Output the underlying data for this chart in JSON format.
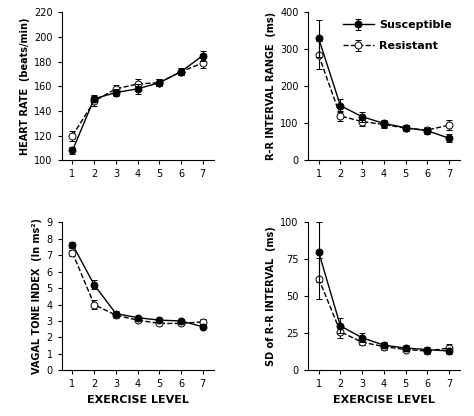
{
  "x": [
    1,
    2,
    3,
    4,
    5,
    6,
    7
  ],
  "hr_susceptible": [
    108,
    150,
    155,
    158,
    163,
    172,
    185
  ],
  "hr_susceptible_err": [
    3,
    3,
    3,
    4,
    3,
    3,
    4
  ],
  "hr_resistant": [
    120,
    148,
    158,
    162,
    163,
    172,
    179
  ],
  "hr_resistant_err": [
    4,
    4,
    3,
    4,
    3,
    3,
    4
  ],
  "rr_susceptible": [
    330,
    148,
    118,
    100,
    88,
    80,
    60
  ],
  "rr_susceptible_err": [
    50,
    18,
    14,
    10,
    8,
    8,
    10
  ],
  "rr_resistant": [
    285,
    120,
    105,
    97,
    87,
    82,
    95
  ],
  "rr_resistant_err": [
    38,
    14,
    12,
    10,
    8,
    8,
    14
  ],
  "vti_susceptible": [
    7.65,
    5.2,
    3.45,
    3.2,
    3.05,
    3.0,
    2.65
  ],
  "vti_susceptible_err": [
    0.18,
    0.28,
    0.15,
    0.12,
    0.1,
    0.1,
    0.1
  ],
  "vti_resistant": [
    7.15,
    4.0,
    3.35,
    3.05,
    2.85,
    2.85,
    2.95
  ],
  "vti_resistant_err": [
    0.18,
    0.28,
    0.15,
    0.12,
    0.1,
    0.1,
    0.15
  ],
  "sd_susceptible": [
    80,
    30,
    22,
    17,
    15,
    14,
    13
  ],
  "sd_susceptible_err": [
    20,
    5,
    3,
    2,
    2,
    2,
    2
  ],
  "sd_resistant": [
    62,
    26,
    19,
    16,
    14,
    13,
    15
  ],
  "sd_resistant_err": [
    14,
    4,
    2,
    2,
    2,
    2,
    3
  ],
  "hr_ylim": [
    100,
    220
  ],
  "hr_yticks": [
    100,
    120,
    140,
    160,
    180,
    200,
    220
  ],
  "rr_ylim": [
    0,
    400
  ],
  "rr_yticks": [
    0,
    100,
    200,
    300,
    400
  ],
  "vti_ylim": [
    0,
    9
  ],
  "vti_yticks": [
    0,
    1,
    2,
    3,
    4,
    5,
    6,
    7,
    8,
    9
  ],
  "sd_ylim": [
    0,
    100
  ],
  "sd_yticks": [
    0,
    25,
    50,
    75,
    100
  ],
  "xlabel": "EXERCISE LEVEL",
  "hr_ylabel": "HEART RATE  (beats/min)",
  "rr_ylabel": "R-R INTERVAL RANGE  (ms)",
  "vti_ylabel": "VAGAL TONE INDEX  (ln ms²)",
  "sd_ylabel": "SD of R-R INTERVAL  (ms)",
  "susceptible_label": "Susceptible",
  "resistant_label": "Resistant",
  "color": "black",
  "fill_susceptible": "black",
  "fill_resistant": "white",
  "markersize": 5,
  "linewidth": 1.0,
  "capsize": 2,
  "elinewidth": 0.8,
  "bg_color": "white",
  "tick_fontsize": 7,
  "label_fontsize": 7,
  "legend_fontsize": 8
}
